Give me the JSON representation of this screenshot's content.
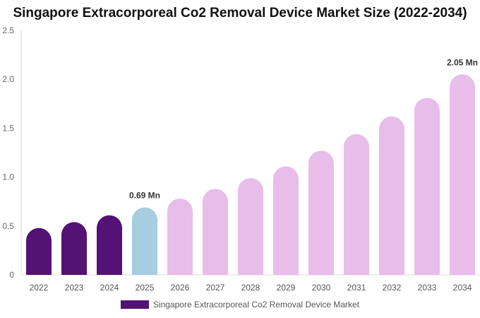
{
  "chart_data": {
    "type": "bar",
    "title": "Singapore Extracorporeal Co2 Removal Device Market Size (2022-2034)",
    "xlabel": "",
    "ylabel": "",
    "categories": [
      "2022",
      "2023",
      "2024",
      "2025",
      "2026",
      "2027",
      "2028",
      "2029",
      "2030",
      "2031",
      "2032",
      "2033",
      "2034"
    ],
    "series": [
      {
        "name": "Singapore Extracorporeal Co2 Removal Device Market",
        "values": [
          0.48,
          0.54,
          0.61,
          0.69,
          0.78,
          0.88,
          0.99,
          1.11,
          1.27,
          1.44,
          1.62,
          1.81,
          2.05
        ]
      }
    ],
    "ylim": [
      0,
      2.5
    ],
    "yticks": [
      "0",
      "0.5",
      "1.0",
      "1.5",
      "2.0",
      "2.5"
    ],
    "data_labels": [
      {
        "category": "2025",
        "text": "0.69 Mn"
      },
      {
        "category": "2034",
        "text": "2.05 Mn"
      }
    ],
    "bar_colors": [
      "#541275",
      "#541275",
      "#541275",
      "#a6cde0",
      "#e8bde9",
      "#e8bde9",
      "#e8bde9",
      "#e8bde9",
      "#e8bde9",
      "#e8bde9",
      "#e8bde9",
      "#e8bde9",
      "#e8bde9"
    ],
    "legend_color": "#541275",
    "legend_position": "bottom",
    "grid": false
  }
}
